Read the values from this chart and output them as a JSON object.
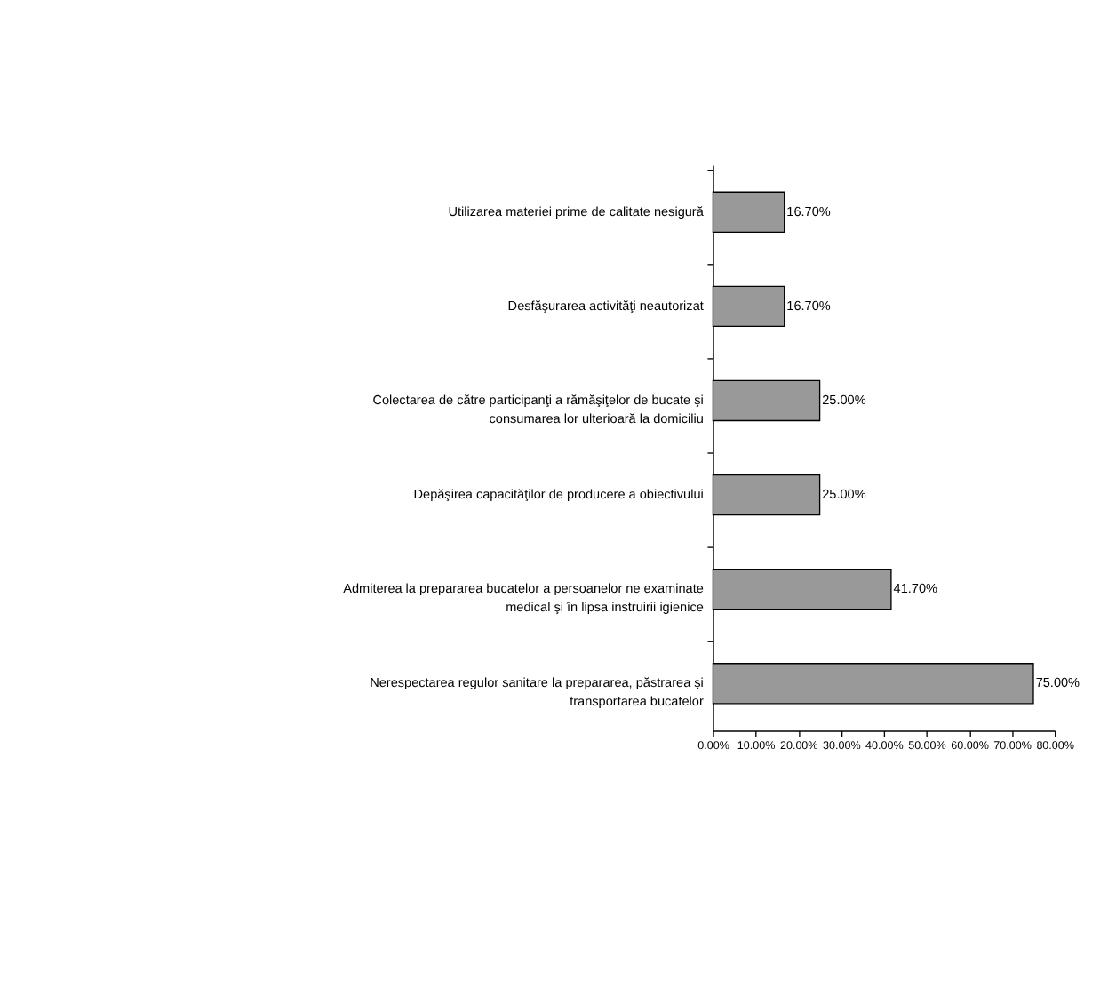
{
  "chart_data": {
    "type": "bar",
    "orientation": "horizontal",
    "categories": [
      "Utilizarea materiei prime de calitate nesigură",
      "Desfăşurarea activităţi neautorizat",
      "Colectarea de către participanţi a rămăşiţelor de bucate şi consumarea lor ulterioară la domiciliu",
      "Depăşirea capacităţilor de producere a obiectivului",
      "Admiterea la prepararea bucatelor a persoanelor ne examinate medical şi în lipsa instruirii igienice",
      "Nerespectarea regulor sanitare la prepararea, păstrarea şi transportarea bucatelor"
    ],
    "values": [
      16.7,
      16.7,
      25.0,
      25.0,
      41.7,
      75.0
    ],
    "value_labels": [
      "16.70%",
      "16.70%",
      "25.00%",
      "25.00%",
      "41.70%",
      "75.00%"
    ],
    "color": "#999999",
    "xlim": [
      0,
      80
    ],
    "xticks": [
      {
        "value": 0,
        "label": "0.00%"
      },
      {
        "value": 10,
        "label": "10.00%"
      },
      {
        "value": 20,
        "label": "20.00%"
      },
      {
        "value": 30,
        "label": "30.00%"
      },
      {
        "value": 40,
        "label": "40.00%"
      },
      {
        "value": 50,
        "label": "50.00%"
      },
      {
        "value": 60,
        "label": "60.00%"
      },
      {
        "value": 70,
        "label": "70.00%"
      },
      {
        "value": 80,
        "label": "80.00%"
      }
    ],
    "grid": false
  }
}
